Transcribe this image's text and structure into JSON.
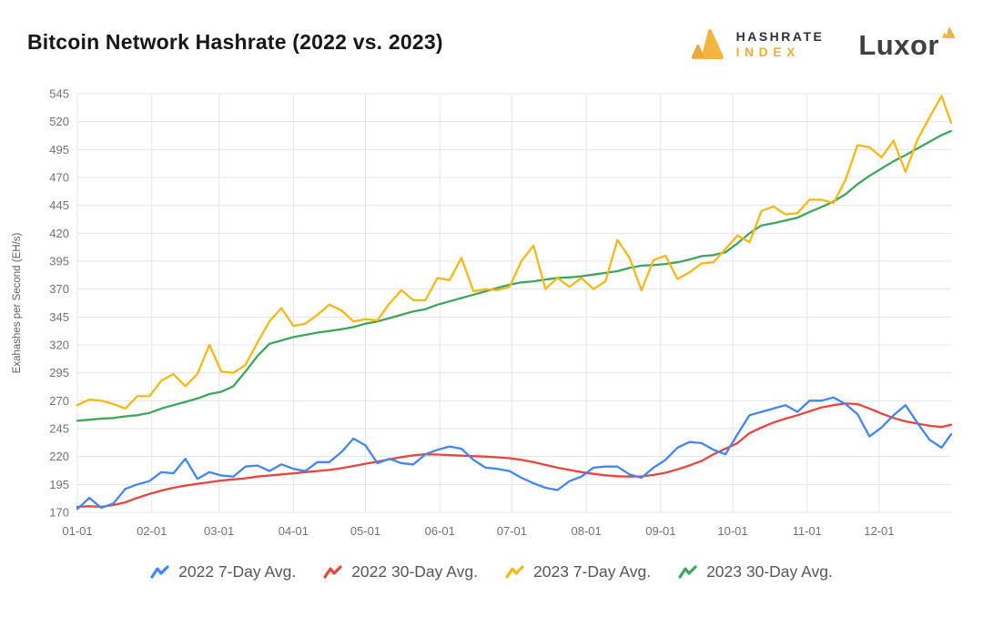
{
  "header": {
    "title": "Bitcoin Network Hashrate (2022 vs. 2023)",
    "hashrate_index_logo": {
      "line1": "HASHRATE",
      "line2": "INDEX",
      "gold": "#efae35"
    },
    "luxor_logo": {
      "text": "Luxor",
      "gold": "#f0b243"
    }
  },
  "chart_data": {
    "type": "line",
    "title": "Bitcoin Network Hashrate (2022 vs. 2023)",
    "xlabel": "",
    "ylabel": "Exahashes per Second (EH/s)",
    "ylim": [
      170,
      545
    ],
    "y_ticks": [
      170,
      195,
      220,
      245,
      270,
      295,
      320,
      345,
      370,
      395,
      420,
      445,
      470,
      495,
      520,
      545
    ],
    "x_range": [
      1,
      365
    ],
    "x_tick_days": [
      1,
      32,
      60,
      91,
      121,
      152,
      182,
      213,
      244,
      274,
      305,
      335
    ],
    "x_tick_labels": [
      "01-01",
      "02-01",
      "03-01",
      "04-01",
      "05-01",
      "06-01",
      "07-01",
      "08-01",
      "09-01",
      "10-01",
      "11-01",
      "12-01"
    ],
    "grid": true,
    "legend_position": "bottom",
    "grid_color": "#e4e5e7",
    "tick_color": "#6e7277",
    "x_days": [
      1,
      6,
      11,
      16,
      21,
      26,
      31,
      36,
      41,
      46,
      51,
      56,
      61,
      66,
      71,
      76,
      81,
      86,
      91,
      96,
      101,
      106,
      111,
      116,
      121,
      126,
      131,
      136,
      141,
      146,
      151,
      156,
      161,
      166,
      171,
      176,
      181,
      186,
      191,
      196,
      201,
      206,
      211,
      216,
      221,
      226,
      231,
      236,
      241,
      246,
      251,
      256,
      261,
      266,
      271,
      276,
      281,
      286,
      291,
      296,
      301,
      306,
      311,
      316,
      321,
      326,
      331,
      336,
      341,
      346,
      351,
      356,
      361,
      365
    ],
    "series": [
      {
        "name": "2022 30-Day Avg.",
        "color": "#e8453c",
        "values": [
          175,
          175.5,
          175,
          176.5,
          179,
          183,
          186.5,
          189.5,
          192,
          194,
          195.5,
          197,
          198.5,
          199.5,
          200.5,
          202,
          203,
          204,
          205,
          206,
          207,
          208,
          209.5,
          211.5,
          213.5,
          215.5,
          217.5,
          219.5,
          221,
          222,
          221.8,
          221.3,
          220.8,
          220.3,
          220,
          219.3,
          218.5,
          217,
          215,
          212.5,
          210,
          208,
          206,
          204.5,
          203.2,
          202.4,
          202,
          202.2,
          203.5,
          205.5,
          208.5,
          212,
          216,
          222,
          227,
          232,
          241,
          246,
          250.5,
          254,
          257,
          260.5,
          264,
          266,
          267.5,
          267,
          263,
          258.5,
          254.5,
          251.5,
          249.5,
          247.5,
          246.5,
          248.5
        ]
      },
      {
        "name": "2022 7-Day Avg.",
        "color": "#4285f4",
        "values": [
          173,
          183,
          174,
          178,
          191,
          195,
          198,
          206,
          205,
          218,
          200,
          206,
          203,
          202,
          211,
          212,
          207,
          213,
          209,
          207,
          215,
          215,
          224,
          236,
          230,
          214,
          218,
          214,
          213,
          222,
          226,
          229,
          227,
          217,
          210,
          209,
          207,
          201,
          196,
          192,
          190,
          198,
          202,
          210,
          211,
          211,
          204,
          201,
          210,
          217,
          228,
          233,
          232,
          226,
          222,
          240,
          257,
          260,
          263,
          266,
          260,
          270,
          270,
          273,
          267,
          258,
          238,
          246,
          257,
          266,
          250,
          235,
          228,
          240
        ]
      },
      {
        "name": "2023 30-Day Avg.",
        "color": "#3ea65b",
        "values": [
          252,
          253,
          254,
          254.5,
          256,
          257,
          259,
          263,
          266,
          269,
          272,
          276,
          278,
          283,
          296,
          310,
          321,
          324,
          327,
          329,
          331,
          332.5,
          334,
          336,
          339,
          341,
          344,
          347,
          350,
          352,
          356,
          359,
          362,
          365,
          368,
          371,
          374,
          376,
          377,
          378.5,
          380,
          380.5,
          381.5,
          383,
          384.5,
          386,
          389,
          391,
          391.5,
          392.5,
          394,
          396.5,
          399.5,
          400.5,
          403,
          411,
          420,
          427,
          429,
          431.5,
          434,
          439,
          443.5,
          448.5,
          455,
          464,
          471.5,
          478,
          484.5,
          490,
          496,
          502,
          508,
          511.5
        ]
      },
      {
        "name": "2023 7-Day Avg.",
        "color": "#f6b816",
        "values": [
          266,
          271,
          270,
          267,
          263,
          274,
          274,
          288,
          294,
          283,
          294,
          320,
          296,
          295,
          302,
          322,
          341,
          353,
          337,
          339,
          347,
          356,
          351,
          341,
          343,
          342,
          357,
          369,
          360,
          360,
          380,
          378,
          398,
          368,
          370,
          369,
          372,
          395,
          409,
          370,
          380,
          372,
          380,
          370,
          377,
          414,
          398,
          369,
          396,
          400,
          379,
          385,
          393,
          394,
          406,
          418,
          412,
          440,
          444,
          437,
          438,
          450,
          450,
          447,
          468,
          499,
          497,
          488,
          503,
          475,
          504,
          524,
          543,
          519
        ]
      }
    ],
    "legend_order": [
      "2022 7-Day Avg.",
      "2022 30-Day Avg.",
      "2023 7-Day Avg.",
      "2023 30-Day Avg."
    ]
  }
}
